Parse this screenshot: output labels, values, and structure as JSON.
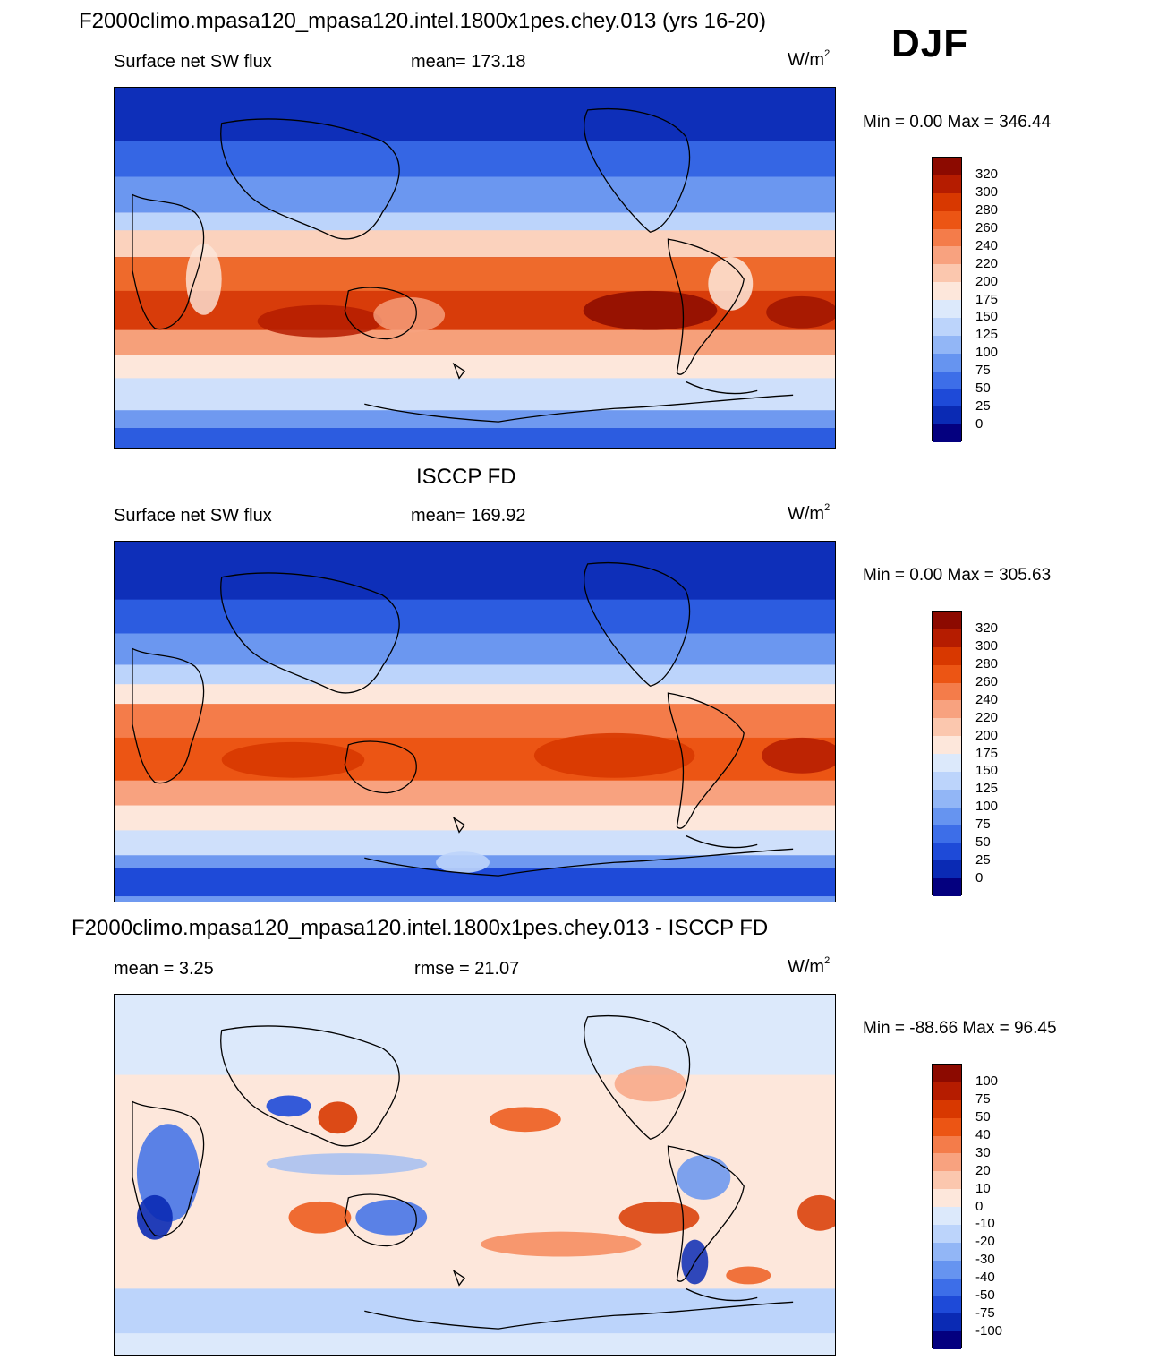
{
  "header": {
    "title": "F2000climo.mpasa120_mpasa120.intel.1800x1pes.chey.013 (yrs 16-20)",
    "season": "DJF"
  },
  "panels": [
    {
      "id": "model",
      "heading": "",
      "left_label": "Surface net SW flux",
      "center_label": "mean= 173.18",
      "units_base": "W/m",
      "units_sup": "2",
      "minmax": "Min =   0.00 Max = 346.44",
      "colorbar": {
        "labels": [
          "320",
          "300",
          "280",
          "260",
          "240",
          "220",
          "200",
          "175",
          "150",
          "125",
          "100",
          "75",
          "50",
          "25",
          "0"
        ],
        "colors": [
          "#8c0a00",
          "#b51c00",
          "#d83800",
          "#ec5514",
          "#f47c4a",
          "#f8a27f",
          "#fbc7ae",
          "#fde7db",
          "#dce9fb",
          "#bcd4fb",
          "#92b6f6",
          "#6694f0",
          "#3d6ee8",
          "#1e4ad8",
          "#0a2ab4",
          "#04007f"
        ]
      }
    },
    {
      "id": "obs",
      "heading": "ISCCP FD",
      "left_label": "Surface net SW flux",
      "center_label": "mean= 169.92",
      "units_base": "W/m",
      "units_sup": "2",
      "minmax": "Min =   0.00 Max = 305.63",
      "colorbar": {
        "labels": [
          "320",
          "300",
          "280",
          "260",
          "240",
          "220",
          "200",
          "175",
          "150",
          "125",
          "100",
          "75",
          "50",
          "25",
          "0"
        ],
        "colors": [
          "#8c0a00",
          "#b51c00",
          "#d83800",
          "#ec5514",
          "#f47c4a",
          "#f8a27f",
          "#fbc7ae",
          "#fde7db",
          "#dce9fb",
          "#bcd4fb",
          "#92b6f6",
          "#6694f0",
          "#3d6ee8",
          "#1e4ad8",
          "#0a2ab4",
          "#04007f"
        ]
      }
    },
    {
      "id": "diff",
      "heading": "F2000climo.mpasa120_mpasa120.intel.1800x1pes.chey.013 - ISCCP FD",
      "left_label": "mean =   3.25",
      "center_label": "rmse =  21.07",
      "units_base": "W/m",
      "units_sup": "2",
      "minmax": "Min = -88.66 Max =  96.45",
      "colorbar": {
        "labels": [
          "100",
          "75",
          "50",
          "40",
          "30",
          "20",
          "10",
          "0",
          "-10",
          "-20",
          "-30",
          "-40",
          "-50",
          "-75",
          "-100"
        ],
        "colors": [
          "#8c0a00",
          "#b51c00",
          "#d83800",
          "#ec5514",
          "#f47c4a",
          "#f8a27f",
          "#fbc7ae",
          "#fde7db",
          "#dce9fb",
          "#bcd4fb",
          "#92b6f6",
          "#6694f0",
          "#3d6ee8",
          "#1e4ad8",
          "#0a2ab4",
          "#04007f"
        ]
      }
    }
  ]
}
